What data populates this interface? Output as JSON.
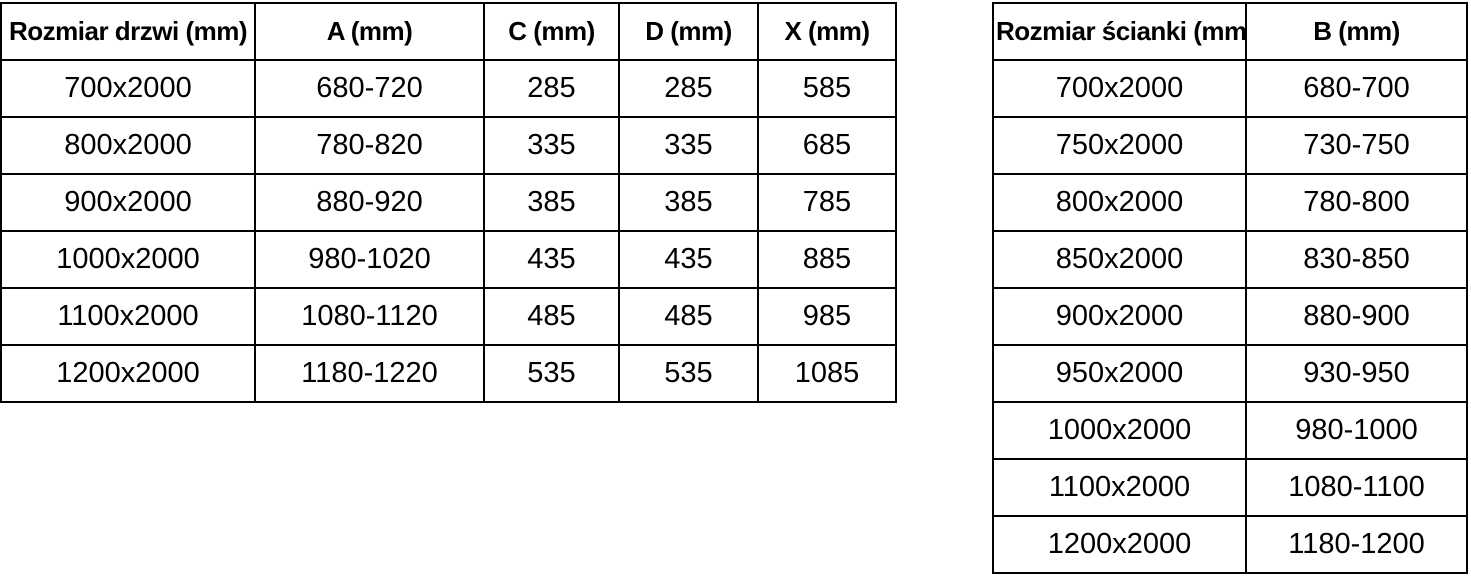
{
  "door_table": {
    "headers": [
      "Rozmiar drzwi (mm)",
      "A (mm)",
      "C (mm)",
      "D (mm)",
      "X (mm)"
    ],
    "rows": [
      [
        "700x2000",
        "680-720",
        "285",
        "285",
        "585"
      ],
      [
        "800x2000",
        "780-820",
        "335",
        "335",
        "685"
      ],
      [
        "900x2000",
        "880-920",
        "385",
        "385",
        "785"
      ],
      [
        "1000x2000",
        "980-1020",
        "435",
        "435",
        "885"
      ],
      [
        "1100x2000",
        "1080-1120",
        "485",
        "485",
        "985"
      ],
      [
        "1200x2000",
        "1180-1220",
        "535",
        "535",
        "1085"
      ]
    ]
  },
  "wall_table": {
    "headers": [
      "Rozmiar ścianki (mm)",
      "B (mm)"
    ],
    "rows": [
      [
        "700x2000",
        "680-700"
      ],
      [
        "750x2000",
        "730-750"
      ],
      [
        "800x2000",
        "780-800"
      ],
      [
        "850x2000",
        "830-850"
      ],
      [
        "900x2000",
        "880-900"
      ],
      [
        "950x2000",
        "930-950"
      ],
      [
        "1000x2000",
        "980-1000"
      ],
      [
        "1100x2000",
        "1080-1100"
      ],
      [
        "1200x2000",
        "1180-1200"
      ]
    ]
  },
  "colors": {
    "text": "#000000",
    "border": "#000000",
    "background": "#ffffff"
  }
}
